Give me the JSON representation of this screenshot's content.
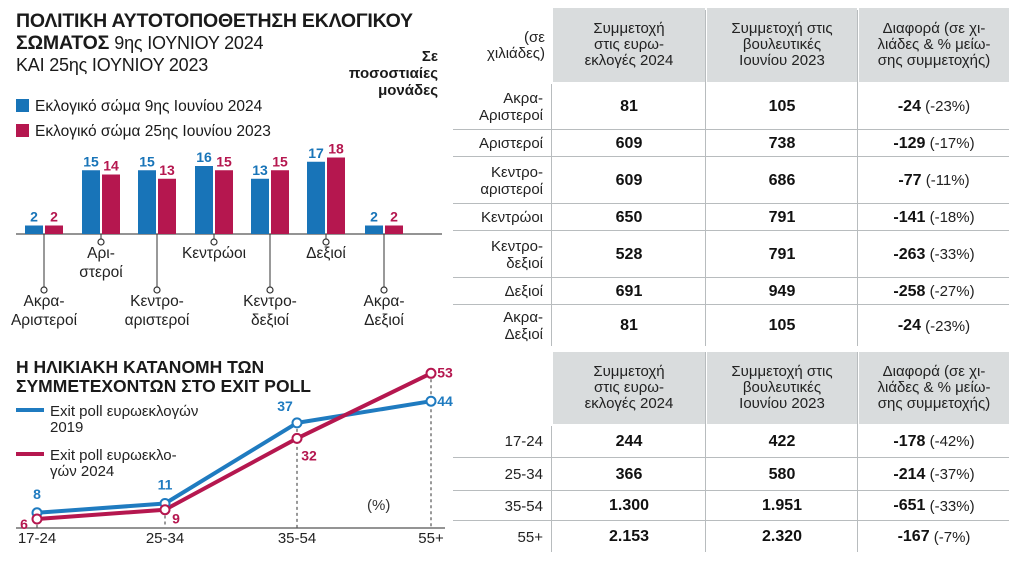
{
  "chart_data": [
    {
      "type": "bar",
      "title": "ΠΟΛΙΤΙΚΗ ΑΥΤΟΤΟΠΟΘΕΤΗΣΗ ΕΚΛΟΓΙΚΟΥ ΣΩΜΑΤΟΣ",
      "subtitle": "9ης ΙΟΥΝΙΟΥ 2024 ΚΑΙ 25ης ΙΟΥΝΙΟΥ 2023",
      "unit_note": "Σε ποσοστιαίες μονάδες",
      "categories": [
        "Ακρα-Αριστεροί",
        "Αριστεροί",
        "Κεντρο-αριστεροί",
        "Κεντρώοι",
        "Κεντρο-δεξιοί",
        "Δεξιοί",
        "Ακρα-Δεξιοί"
      ],
      "category_labels": [
        [
          "Ακρα-",
          "Αριστεροί"
        ],
        [
          "Αρι-",
          "στεροί"
        ],
        [
          "Κεντρο-",
          "αριστεροί"
        ],
        [
          "Κεντρώοι"
        ],
        [
          "Κεντρο-",
          "δεξιοί"
        ],
        [
          "Δεξιοί"
        ],
        [
          "Ακρα-",
          "Δεξιοί"
        ]
      ],
      "series": [
        {
          "name": "Εκλογικό σώμα 9ης Ιουνίου 2024",
          "color": "#1874b8",
          "values": [
            2,
            15,
            15,
            16,
            13,
            17,
            2
          ]
        },
        {
          "name": "Εκλογικό σώμα 25ης Ιουνίου 2023",
          "color": "#b5174f",
          "values": [
            2,
            14,
            13,
            15,
            15,
            18,
            2
          ]
        }
      ],
      "legend_position": "top-left"
    },
    {
      "type": "table",
      "unit_note": "(σε χιλιάδες)",
      "columns": [
        "Συμμετοχή στις ευρω-εκλογές 2024",
        "Συμμετοχή στις βουλευτικές Ιουνίου 2023",
        "Διαφορά (σε χι-λιάδες & % μείω-σης συμμετοχής)"
      ],
      "rows": [
        {
          "label": "Ακρα-Αριστεροί",
          "label_lines": [
            "Ακρα-",
            "Αριστεροί"
          ],
          "euro2024": "81",
          "parl2023": "105",
          "diff": "-24",
          "pct": "(-23%)"
        },
        {
          "label": "Αριστεροί",
          "label_lines": [
            "Αριστεροί"
          ],
          "euro2024": "609",
          "parl2023": "738",
          "diff": "-129",
          "pct": "(-17%)"
        },
        {
          "label": "Κεντρο-αριστεροί",
          "label_lines": [
            "Κεντρο-",
            "αριστεροί"
          ],
          "euro2024": "609",
          "parl2023": "686",
          "diff": "-77",
          "pct": "(-11%)"
        },
        {
          "label": "Κεντρώοι",
          "label_lines": [
            "Κεντρώοι"
          ],
          "euro2024": "650",
          "parl2023": "791",
          "diff": "-141",
          "pct": "(-18%)"
        },
        {
          "label": "Κεντρο-δεξιοί",
          "label_lines": [
            "Κεντρο-",
            "δεξιοί"
          ],
          "euro2024": "528",
          "parl2023": "791",
          "diff": "-263",
          "pct": "(-33%)"
        },
        {
          "label": "Δεξιοί",
          "label_lines": [
            "Δεξιοί"
          ],
          "euro2024": "691",
          "parl2023": "949",
          "diff": "-258",
          "pct": "(-27%)"
        },
        {
          "label": "Ακρα-Δεξιοί",
          "label_lines": [
            "Ακρα-",
            "Δεξιοί"
          ],
          "euro2024": "81",
          "parl2023": "105",
          "diff": "-24",
          "pct": "(-23%)"
        }
      ]
    },
    {
      "type": "line",
      "title": "Η ΗΛΙΚΙΑΚΗ ΚΑΤΑΝΟΜΗ ΤΩΝ ΣΥΜΜΕΤΕΧΟΝΤΩΝ ΣΤΟ EXIT POLL",
      "unit_note": "(%)",
      "x": [
        "17-24",
        "25-34",
        "35-54",
        "55+"
      ],
      "series": [
        {
          "name": "Exit poll ευρωεκλογών 2019",
          "color": "#1f7bc0",
          "values": [
            8,
            11,
            37,
            44
          ]
        },
        {
          "name": "Exit poll ευρωεκλογών 2024",
          "color": "#b5174f",
          "values": [
            6,
            9,
            32,
            53
          ]
        }
      ],
      "legend_position": "top-left"
    },
    {
      "type": "table",
      "columns": [
        "Συμμετοχή στις ευρω-εκλογές 2024",
        "Συμμετοχή στις βουλευτικές Ιουνίου 2023",
        "Διαφορά (σε χι-λιάδες & % μείω-σης συμμετοχής)"
      ],
      "rows": [
        {
          "label": "17-24",
          "euro2024": "244",
          "parl2023": "422",
          "diff": "-178",
          "pct": "(-42%)"
        },
        {
          "label": "25-34",
          "euro2024": "366",
          "parl2023": "580",
          "diff": "-214",
          "pct": "(-37%)"
        },
        {
          "label": "35-54",
          "euro2024": "1.300",
          "parl2023": "1.951",
          "diff": "-651",
          "pct": "(-33%)"
        },
        {
          "label": "55+",
          "euro2024": "2.153",
          "parl2023": "2.320",
          "diff": "-167",
          "pct": "(-7%)"
        }
      ]
    }
  ],
  "text": {
    "title1_main": "ΠΟΛΙΤΙΚΗ ΑΥΤΟΤΟΠΟΘΕΤΗΣΗ ΕΚΛΟΓΙΚΟΥ ΣΩΜΑΤΟΣ",
    "title1_date_a": "9ης ΙΟΥΝΙΟΥ 2024",
    "title1_date_b": "ΚΑΙ 25ης ΙΟΥΝΙΟΥ 2023",
    "unit_bars_l1": "Σε",
    "unit_bars_l2": "ποσοστιαίες",
    "unit_bars_l3": "μονάδες",
    "unit_table_l1": "(σε",
    "unit_table_l2": "χιλιάδες)",
    "hdr_col1_l1": "Συμμετοχή",
    "hdr_col1_l2": "στις ευρω-",
    "hdr_col1_l3": "εκλογές 2024",
    "hdr_col2_l1": "Συμμετοχή στις",
    "hdr_col2_l2": "βουλευτικές",
    "hdr_col2_l3": "Ιουνίου 2023",
    "hdr_col3_l1": "Διαφορά (σε χι-",
    "hdr_col3_l2": "λιάδες & % μείω-",
    "hdr_col3_l3": "σης συμμετοχής)",
    "title2_l1": "Η ΗΛΙΚΙΑΚΗ ΚΑΤΑΝΟΜΗ ΤΩΝ",
    "title2_l2": "ΣΥΜΜΕΤΕΧΟΝΤΩΝ ΣΤΟ EXIT POLL",
    "leg2_a_l1": "Exit poll ευρωεκλογών",
    "leg2_a_l2": "2019",
    "leg2_b_l1": "Exit poll ευρωεκλο-",
    "leg2_b_l2": "γών 2024",
    "pct_unit": "(%)"
  }
}
